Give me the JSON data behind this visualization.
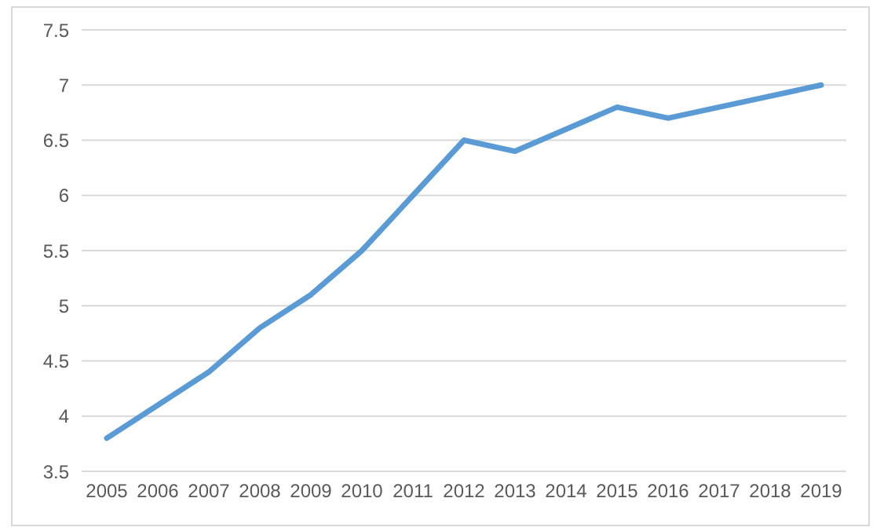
{
  "chart_data": {
    "type": "line",
    "categories": [
      "2005",
      "2006",
      "2007",
      "2008",
      "2009",
      "2010",
      "2011",
      "2012",
      "2013",
      "2014",
      "2015",
      "2016",
      "2017",
      "2018",
      "2019"
    ],
    "series": [
      {
        "color": "#5b9bd5",
        "values": [
          3.8,
          4.1,
          4.4,
          4.8,
          5.1,
          5.5,
          6.0,
          6.5,
          6.4,
          6.6,
          6.8,
          6.7,
          6.8,
          6.9,
          7.0
        ]
      }
    ],
    "ylim": [
      3.5,
      7.5
    ],
    "yticks": [
      3.5,
      4,
      4.5,
      5,
      5.5,
      6,
      6.5,
      7,
      7.5
    ],
    "grid": "y",
    "legend": false,
    "marker": "none",
    "line_style": "solid"
  }
}
